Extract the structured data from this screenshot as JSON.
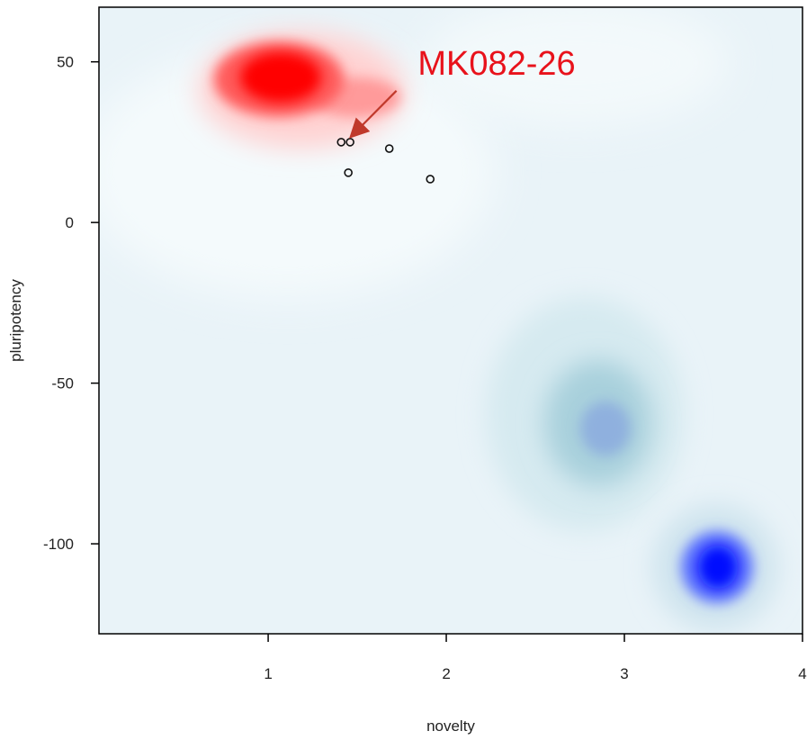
{
  "chart_data": {
    "type": "heatmap",
    "xlabel": "novelty",
    "ylabel": "pluripotency",
    "xlim": [
      0.05,
      4.0
    ],
    "ylim": [
      -128,
      67
    ],
    "x_ticks": [
      1,
      2,
      3,
      4
    ],
    "y_ticks": [
      50,
      0,
      -50,
      -100
    ],
    "grid": false,
    "colors": {
      "background": "#e9f3f8",
      "red_density": "#ff0000",
      "blue_density": "#0010ff",
      "teal_density": "#6fb3c6",
      "annotation": "#e8121b",
      "arrow": "#c0392b"
    },
    "density_regions": [
      {
        "color": "red",
        "center": [
          1.07,
          47
        ]
      },
      {
        "color": "teal",
        "center": [
          2.9,
          -64
        ]
      },
      {
        "color": "blue",
        "center": [
          3.53,
          -108
        ]
      }
    ],
    "points": [
      {
        "x": 1.41,
        "y": 25
      },
      {
        "x": 1.46,
        "y": 25
      },
      {
        "x": 1.68,
        "y": 23
      },
      {
        "x": 1.45,
        "y": 15.5
      },
      {
        "x": 1.91,
        "y": 13.5
      }
    ],
    "annotation": {
      "text": "MK082-26",
      "text_anchor": [
        1.84,
        46
      ],
      "arrow_from": [
        1.72,
        41
      ],
      "arrow_to": [
        1.47,
        27
      ]
    }
  }
}
